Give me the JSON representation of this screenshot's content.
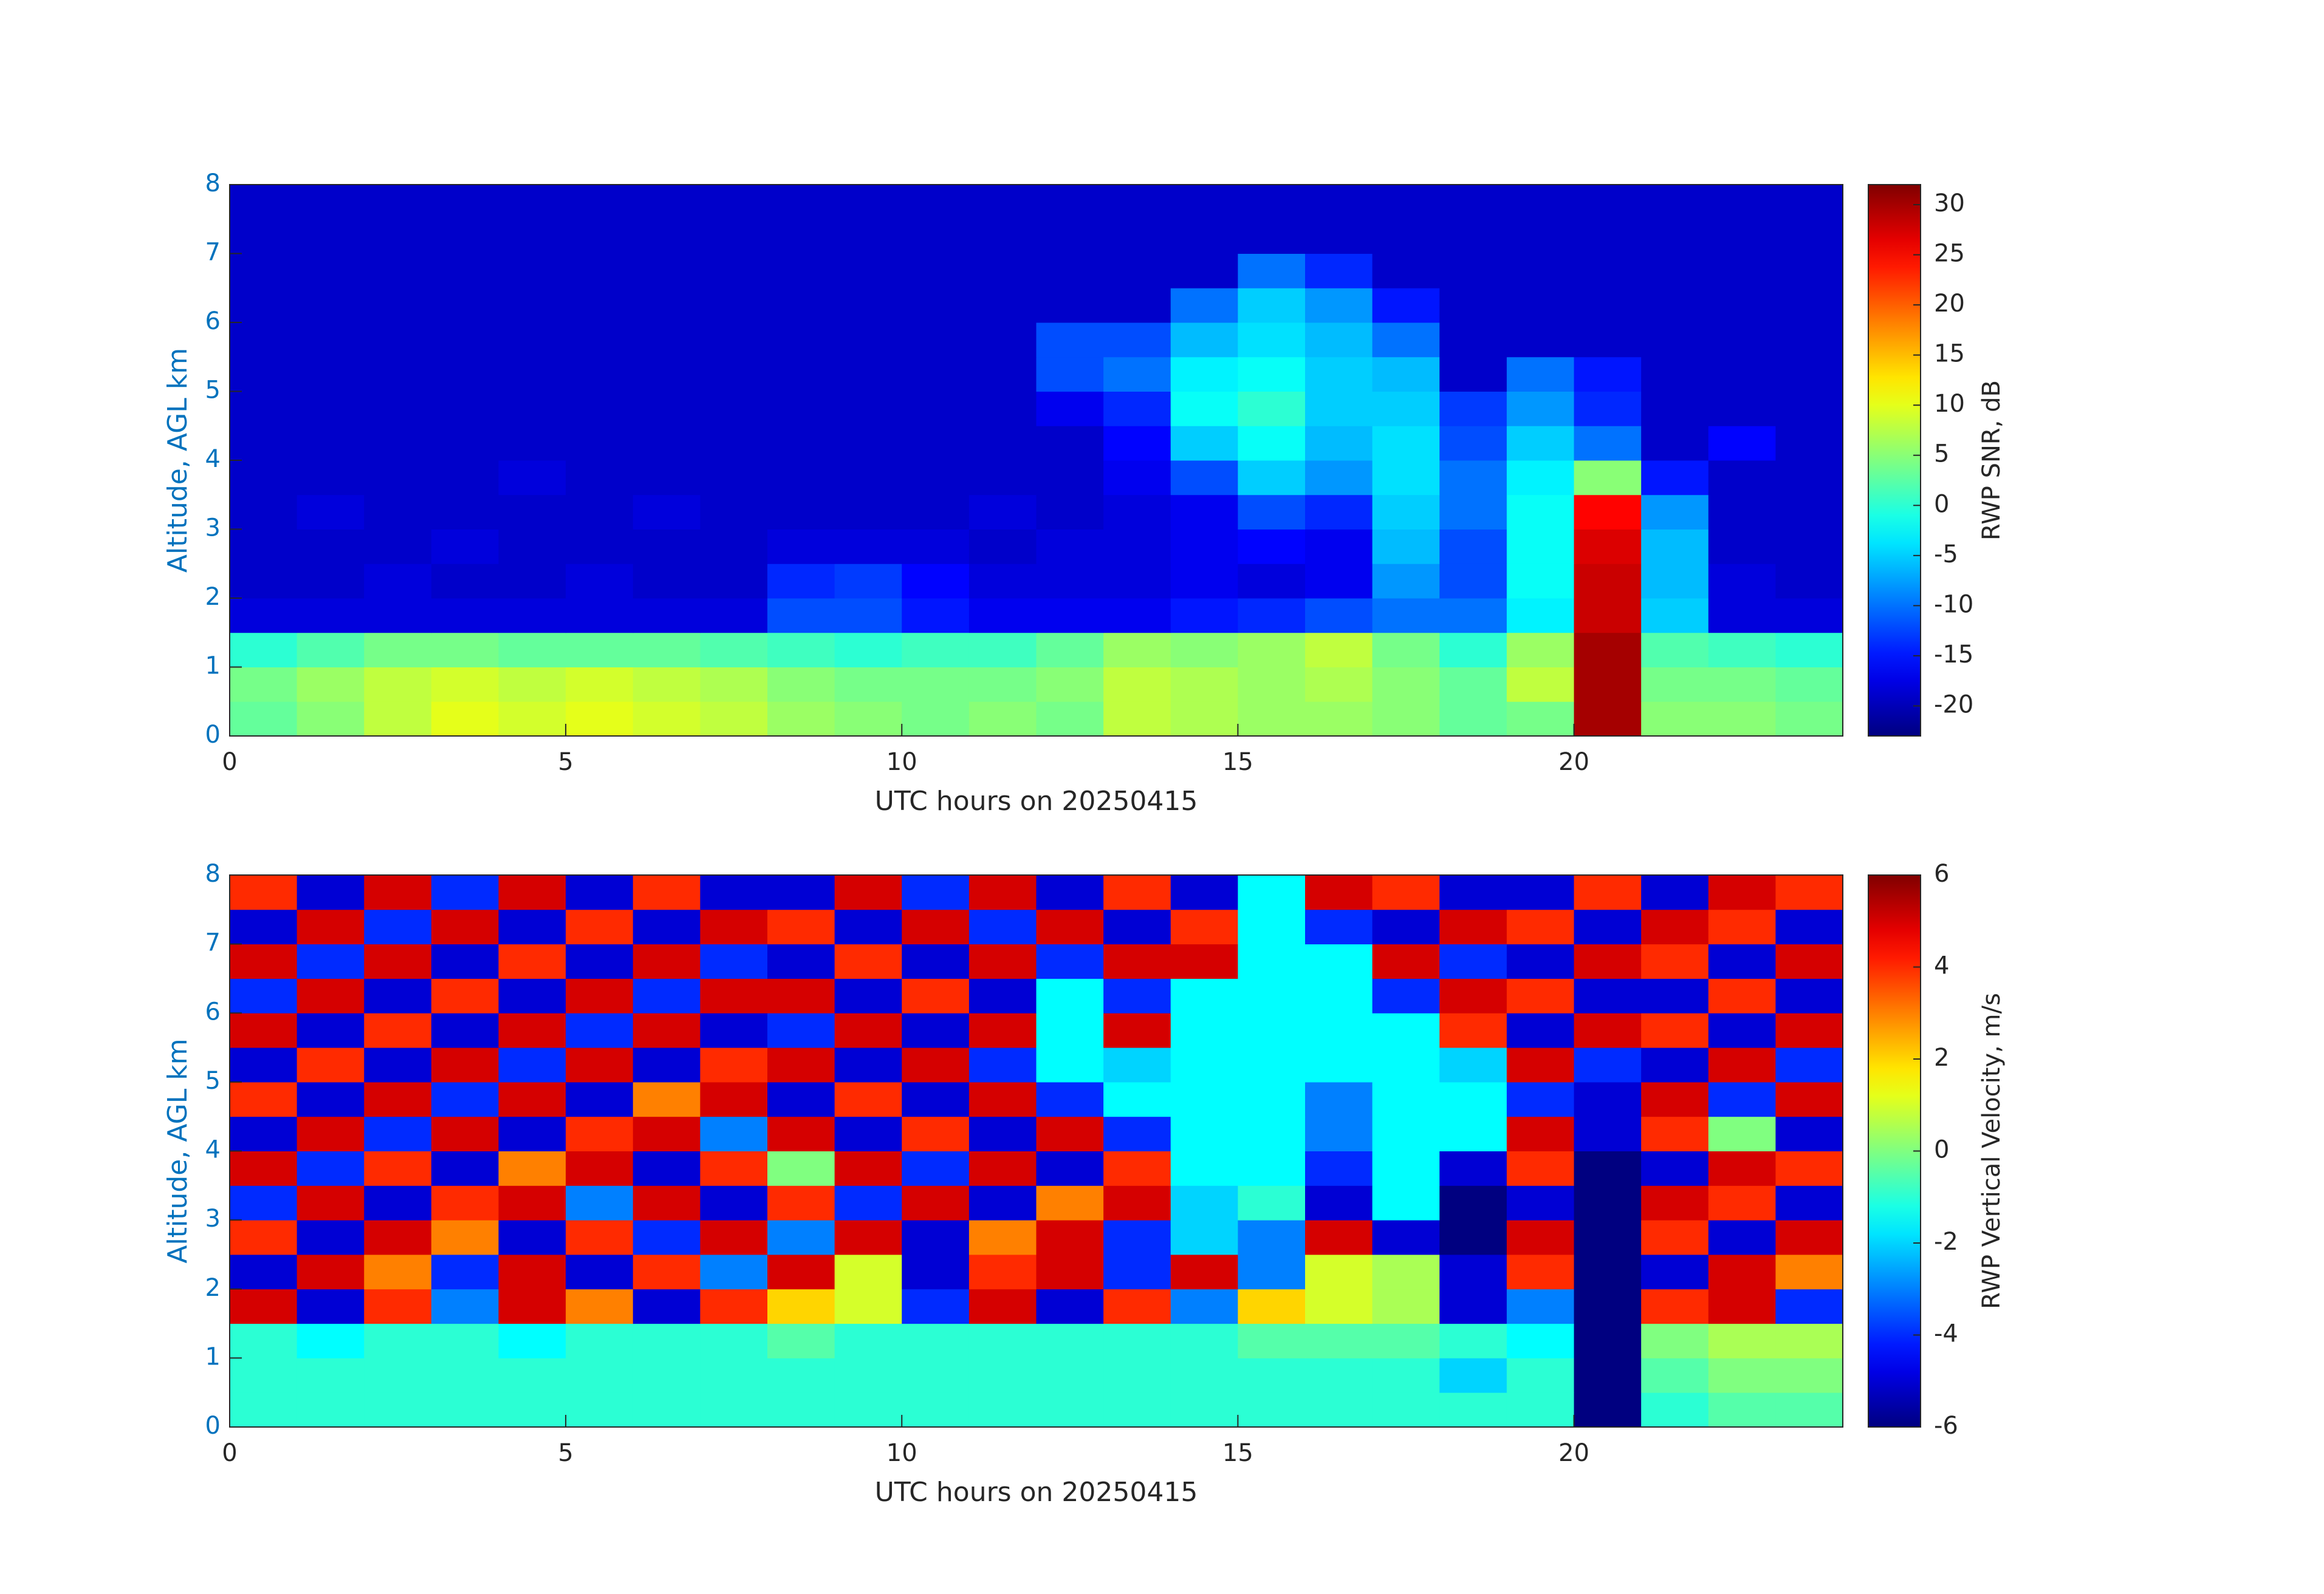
{
  "chart_data": [
    {
      "type": "heatmap",
      "colormap": "jet",
      "x": [
        0.5,
        1.5,
        2.5,
        3.5,
        4.5,
        5.5,
        6.5,
        7.5,
        8.5,
        9.5,
        10.5,
        11.5,
        12.5,
        13.5,
        14.5,
        15.5,
        16.5,
        17.5,
        18.5,
        19.5,
        20.5,
        21.5,
        22.5,
        23.5
      ],
      "y": [
        0.25,
        0.75,
        1.25,
        1.75,
        2.25,
        2.75,
        3.25,
        3.75,
        4.25,
        4.75,
        5.25,
        5.75,
        6.25,
        6.75,
        7.25,
        7.75
      ],
      "z": [
        [
          3,
          5,
          8,
          10,
          9,
          10,
          9,
          8,
          6,
          5,
          4,
          5,
          4,
          8,
          7,
          6,
          6,
          5,
          3,
          4,
          30,
          5,
          5,
          4
        ],
        [
          4,
          6,
          8,
          9,
          8,
          9,
          8,
          7,
          5,
          4,
          4,
          4,
          5,
          8,
          7,
          6,
          7,
          5,
          3,
          8,
          30,
          4,
          4,
          3
        ],
        [
          0,
          2,
          4,
          4,
          3,
          3,
          3,
          2,
          1,
          0,
          1,
          1,
          3,
          6,
          5,
          6,
          8,
          4,
          0,
          6,
          30,
          2,
          1,
          0
        ],
        [
          -18,
          -18,
          -18,
          -18,
          -18,
          -18,
          -18,
          -18,
          -12,
          -12,
          -15,
          -17,
          -17,
          -17,
          -15,
          -14,
          -12,
          -10,
          -10,
          -3,
          28,
          -5,
          -18,
          -18
        ],
        [
          -19,
          -19,
          -18,
          -19,
          -19,
          -18,
          -19,
          -19,
          -14,
          -13,
          -16,
          -18,
          -18,
          -18,
          -17,
          -18,
          -17,
          -8,
          -12,
          -2,
          28,
          -6,
          -18,
          -19
        ],
        [
          -19,
          -19,
          -19,
          -18,
          -19,
          -19,
          -19,
          -19,
          -18,
          -18,
          -18,
          -19,
          -18,
          -18,
          -17,
          -16,
          -17,
          -6,
          -12,
          -2,
          27,
          -6,
          -19,
          -19
        ],
        [
          -19,
          -18,
          -19,
          -19,
          -19,
          -19,
          -18,
          -19,
          -19,
          -19,
          -19,
          -18,
          -19,
          -18,
          -17,
          -12,
          -14,
          -5,
          -10,
          -2,
          25,
          -8,
          -19,
          -19
        ],
        [
          -19,
          -19,
          -19,
          -19,
          -18,
          -19,
          -19,
          -19,
          -19,
          -19,
          -19,
          -19,
          -19,
          -17,
          -12,
          -5,
          -8,
          -4,
          -10,
          -3,
          5,
          -15,
          -19,
          -19
        ],
        [
          -19,
          -19,
          -19,
          -19,
          -19,
          -19,
          -19,
          -19,
          -19,
          -19,
          -19,
          -19,
          -19,
          -16,
          -5,
          -2,
          -6,
          -4,
          -12,
          -5,
          -10,
          -19,
          -16,
          -19
        ],
        [
          -19,
          -19,
          -19,
          -19,
          -19,
          -19,
          -19,
          -19,
          -19,
          -19,
          -19,
          -19,
          -17,
          -14,
          -2,
          0,
          -5,
          -5,
          -13,
          -8,
          -14,
          -19,
          -19,
          -19
        ],
        [
          -19,
          -19,
          -19,
          -19,
          -19,
          -19,
          -19,
          -19,
          -19,
          -19,
          -19,
          -19,
          -12,
          -10,
          -3,
          -2,
          -5,
          -6,
          -19,
          -10,
          -15,
          -19,
          -19,
          -19
        ],
        [
          -19,
          -19,
          -19,
          -19,
          -19,
          -19,
          -19,
          -19,
          -19,
          -19,
          -19,
          -19,
          -12,
          -12,
          -6,
          -4,
          -6,
          -10,
          -19,
          -19,
          -19,
          -19,
          -19,
          -19
        ],
        [
          -19,
          -19,
          -19,
          -19,
          -19,
          -19,
          -19,
          -19,
          -19,
          -19,
          -19,
          -19,
          -19,
          -19,
          -10,
          -5,
          -8,
          -15,
          -19,
          -19,
          -19,
          -19,
          -19,
          -19
        ],
        [
          -19,
          -19,
          -19,
          -19,
          -19,
          -19,
          -19,
          -19,
          -19,
          -19,
          -19,
          -19,
          -19,
          -19,
          -19,
          -10,
          -14,
          -19,
          -19,
          -19,
          -19,
          -19,
          -19,
          -19
        ],
        [
          -19,
          -19,
          -19,
          -19,
          -19,
          -19,
          -19,
          -19,
          -19,
          -19,
          -19,
          -19,
          -19,
          -19,
          -19,
          -19,
          -19,
          -19,
          -19,
          -19,
          -19,
          -19,
          -19,
          -19
        ],
        [
          -19,
          -19,
          -19,
          -19,
          -19,
          -19,
          -19,
          -19,
          -19,
          -19,
          -19,
          -19,
          -19,
          -19,
          -19,
          -19,
          -19,
          -19,
          -19,
          -19,
          -19,
          -19,
          -19,
          -19
        ]
      ],
      "xlim": [
        0,
        24
      ],
      "ylim": [
        0,
        8
      ],
      "xticks": [
        0,
        5,
        10,
        15,
        20
      ],
      "yticks": [
        0,
        1,
        2,
        3,
        4,
        5,
        6,
        7,
        8
      ],
      "xlabel": "UTC hours on 20250415",
      "ylabel": "Altitude, AGL km",
      "clim": [
        -23,
        32
      ],
      "cticks": [
        -20,
        -15,
        -10,
        -5,
        0,
        5,
        10,
        15,
        20,
        25,
        30
      ],
      "colorbar_label": "RWP SNR, dB"
    },
    {
      "type": "heatmap",
      "colormap": "jet",
      "x": [
        0.5,
        1.5,
        2.5,
        3.5,
        4.5,
        5.5,
        6.5,
        7.5,
        8.5,
        9.5,
        10.5,
        11.5,
        12.5,
        13.5,
        14.5,
        15.5,
        16.5,
        17.5,
        18.5,
        19.5,
        20.5,
        21.5,
        22.5,
        23.5
      ],
      "y": [
        0.25,
        0.75,
        1.25,
        1.75,
        2.25,
        2.75,
        3.25,
        3.75,
        4.25,
        4.75,
        5.25,
        5.75,
        6.25,
        6.75,
        7.25,
        7.75
      ],
      "z": [
        [
          -1,
          -1,
          -1,
          -1,
          -1,
          -1,
          -1,
          -1,
          -1,
          -1,
          -1,
          -1,
          -1,
          -1,
          -1,
          -1,
          -1,
          -1,
          -1,
          -1,
          -6,
          -1,
          -0.5,
          -0.5
        ],
        [
          -1,
          -1,
          -1,
          -1,
          -1,
          -1,
          -1,
          -1,
          -1,
          -1,
          -1,
          -1,
          -1,
          -1,
          -1,
          -1,
          -1,
          -1,
          -2,
          -1,
          -6,
          -0.5,
          0,
          0
        ],
        [
          -1,
          -1.5,
          -1,
          -1,
          -1.5,
          -1,
          -1,
          -1,
          -0.5,
          -1,
          -1,
          -1,
          -1,
          -1,
          -1,
          -0.5,
          -0.5,
          -0.5,
          -1,
          -1.5,
          -6,
          0,
          0.5,
          0.5
        ],
        [
          5,
          -5,
          4,
          -3,
          5,
          3,
          -5,
          4,
          2,
          1,
          -4,
          5,
          -5,
          4,
          -3,
          2,
          1,
          0.5,
          -5,
          -3,
          -6,
          4,
          5,
          -4
        ],
        [
          -5,
          5,
          3,
          -4,
          5,
          -5,
          4,
          -3,
          5,
          1,
          -5,
          4,
          5,
          -4,
          5,
          -3,
          1,
          0.5,
          -5,
          4,
          -6,
          -5,
          5,
          3
        ],
        [
          4,
          -5,
          5,
          3,
          -5,
          4,
          -4,
          5,
          -3,
          5,
          -5,
          3,
          5,
          -4,
          -2,
          -3,
          5,
          -5,
          -6,
          5,
          -6,
          4,
          -5,
          5
        ],
        [
          -4,
          5,
          -5,
          4,
          5,
          -3,
          5,
          -5,
          4,
          -4,
          5,
          -5,
          3,
          5,
          -2,
          -1,
          -5,
          -1.5,
          -6,
          -5,
          -6,
          5,
          4,
          -5
        ],
        [
          5,
          -4,
          4,
          -5,
          3,
          5,
          -5,
          4,
          0,
          5,
          -4,
          5,
          -5,
          4,
          -1.5,
          -1.5,
          -4,
          -1.5,
          -5,
          4,
          -6,
          -5,
          5,
          4
        ],
        [
          -5,
          5,
          -4,
          5,
          -5,
          4,
          5,
          -3,
          5,
          -5,
          4,
          -5,
          5,
          -4,
          -1.5,
          -1.5,
          -3,
          -1.5,
          -1.5,
          5,
          -5,
          4,
          0,
          -5
        ],
        [
          4,
          -5,
          5,
          -4,
          5,
          -5,
          3,
          5,
          -5,
          4,
          -5,
          5,
          -4,
          -1.5,
          -1.5,
          -1.5,
          -3,
          -1.5,
          -1.5,
          -4,
          -5,
          5,
          -4,
          5
        ],
        [
          -5,
          4,
          -5,
          5,
          -4,
          5,
          -5,
          4,
          5,
          -5,
          5,
          -4,
          -1.5,
          -2,
          -1.5,
          -1.5,
          -1.5,
          -1.5,
          -2,
          5,
          -4,
          -5,
          5,
          -4
        ],
        [
          5,
          -5,
          4,
          -5,
          5,
          -4,
          5,
          -5,
          -4,
          5,
          -5,
          5,
          -1.5,
          5,
          -1.5,
          -1.5,
          -1.5,
          -1.5,
          4,
          -5,
          5,
          4,
          -5,
          5
        ],
        [
          -4,
          5,
          -5,
          4,
          -5,
          5,
          -4,
          5,
          5,
          -5,
          4,
          -5,
          -1.5,
          -4,
          -1.5,
          -1.5,
          -1.5,
          -4,
          5,
          4,
          -5,
          -5,
          4,
          -5
        ],
        [
          5,
          -4,
          5,
          -5,
          4,
          -5,
          5,
          -4,
          -5,
          4,
          -5,
          5,
          -4,
          5,
          5,
          -1.5,
          -1.5,
          5,
          -4,
          -5,
          5,
          4,
          -5,
          5
        ],
        [
          -5,
          5,
          -4,
          5,
          -5,
          4,
          -5,
          5,
          4,
          -5,
          5,
          -4,
          5,
          -5,
          4,
          -1.5,
          -4,
          -5,
          5,
          4,
          -5,
          5,
          4,
          -5
        ],
        [
          4,
          -5,
          5,
          -4,
          5,
          -5,
          4,
          -5,
          -5,
          5,
          -4,
          5,
          -5,
          4,
          -5,
          -1.5,
          5,
          4,
          -5,
          -5,
          4,
          -5,
          5,
          4
        ]
      ],
      "xlim": [
        0,
        24
      ],
      "ylim": [
        0,
        8
      ],
      "xticks": [
        0,
        5,
        10,
        15,
        20
      ],
      "yticks": [
        0,
        1,
        2,
        3,
        4,
        5,
        6,
        7,
        8
      ],
      "xlabel": "UTC hours on 20250415",
      "ylabel": "Altitude, AGL km",
      "clim": [
        -6,
        6
      ],
      "cticks": [
        -6,
        -4,
        -2,
        0,
        2,
        4,
        6
      ],
      "colorbar_label": "RWP Vertical Velocity, m/s"
    }
  ]
}
